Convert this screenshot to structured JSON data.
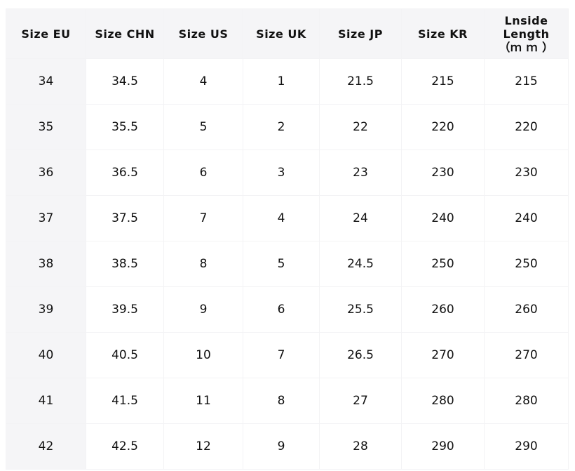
{
  "headers": [
    "Size EU",
    "Size CHN",
    "Size US",
    "Size UK",
    "Size JP",
    "Size KR",
    "Lnside Length"
  ],
  "last_header_unit": "（ｍ ｍ ）",
  "rows": [
    [
      "34",
      "34.5",
      "4",
      "1",
      "21.5",
      "215",
      "215"
    ],
    [
      "35",
      "35.5",
      "5",
      "2",
      "22",
      "220",
      "220"
    ],
    [
      "36",
      "36.5",
      "6",
      "3",
      "23",
      "230",
      "230"
    ],
    [
      "37",
      "37.5",
      "7",
      "4",
      "24",
      "240",
      "240"
    ],
    [
      "38",
      "38.5",
      "8",
      "5",
      "24.5",
      "250",
      "250"
    ],
    [
      "39",
      "39.5",
      "9",
      "6",
      "25.5",
      "260",
      "260"
    ],
    [
      "40",
      "40.5",
      "10",
      "7",
      "26.5",
      "270",
      "270"
    ],
    [
      "41",
      "41.5",
      "11",
      "8",
      "27",
      "280",
      "280"
    ],
    [
      "42",
      "42.5",
      "12",
      "9",
      "28",
      "290",
      "290"
    ]
  ]
}
